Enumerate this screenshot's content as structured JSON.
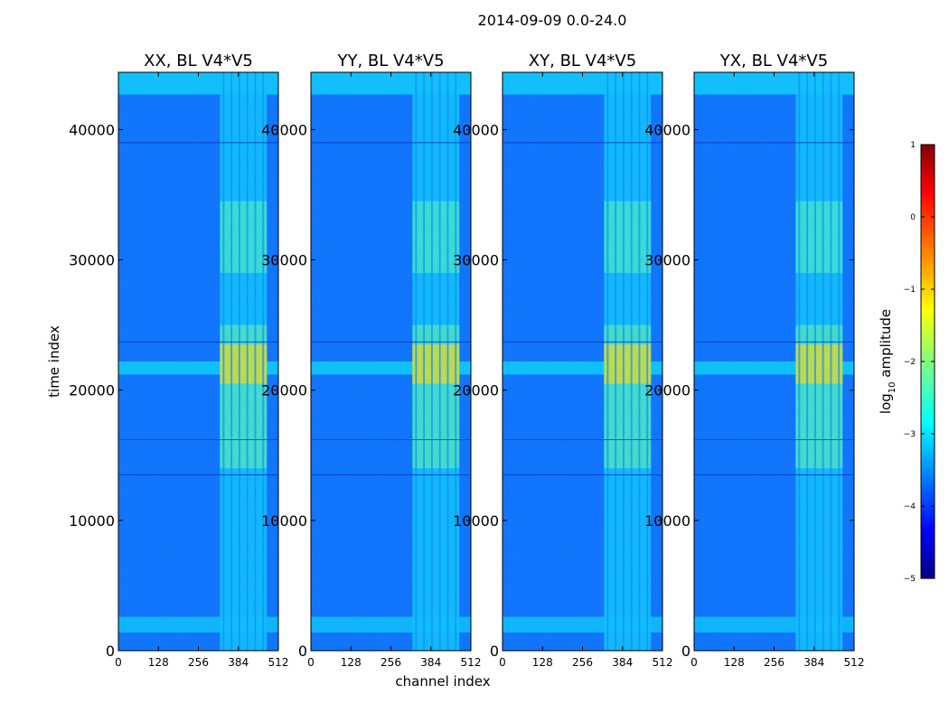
{
  "suptitle": "2014-09-09 0.0-24.0",
  "chart_data": {
    "type": "heatmap",
    "xlabel": "channel index",
    "ylabel": "time index",
    "xlim": [
      0,
      512
    ],
    "ylim": [
      0,
      44400
    ],
    "xticks": [
      0,
      128,
      256,
      384,
      512
    ],
    "yticks": [
      0,
      10000,
      20000,
      30000,
      40000
    ],
    "panels": [
      {
        "title": "XX, BL V4*V5"
      },
      {
        "title": "YY, BL V4*V5"
      },
      {
        "title": "XY, BL V4*V5"
      },
      {
        "title": "YX, BL V4*V5"
      }
    ],
    "colorbar": {
      "label_main": "log",
      "label_sub": "10",
      "label_tail": " amplitude",
      "range": [
        -5,
        1
      ],
      "ticks": [
        "1",
        "0",
        "−1",
        "−2",
        "−3",
        "−4",
        "−5"
      ],
      "colormap": "jet"
    },
    "features": {
      "background_log_amp": -3.6,
      "rfi_channel_band": [
        325,
        475
      ],
      "rfi_time_bands": [
        {
          "t": [
            14000,
            25000
          ],
          "log_amp": -2.3
        },
        {
          "t": [
            20500,
            23500
          ],
          "log_amp": -1.2
        },
        {
          "t": [
            29000,
            34500
          ],
          "log_amp": -2.4
        }
      ],
      "bright_time_bands": [
        {
          "t": [
            42700,
            44400
          ],
          "log_amp": -2.9
        },
        {
          "t": [
            1400,
            2600
          ],
          "log_amp": -3.0
        },
        {
          "t": [
            21200,
            22200
          ],
          "log_amp": -2.9
        }
      ],
      "lines_time": [
        39000,
        23700,
        16200,
        13500
      ]
    }
  }
}
